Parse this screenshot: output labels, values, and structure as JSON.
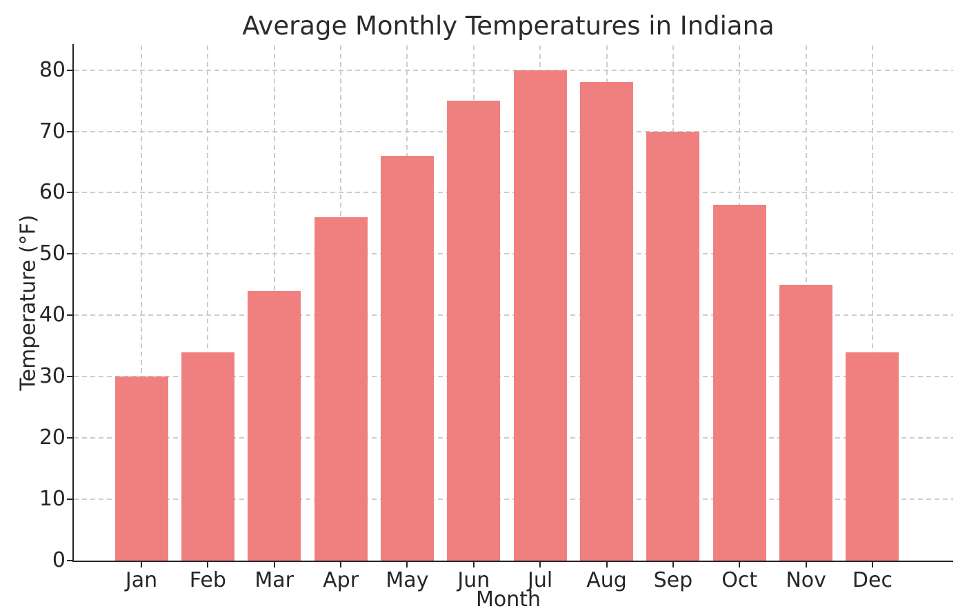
{
  "chart_data": {
    "type": "bar",
    "title": "Average Monthly Temperatures in Indiana",
    "xlabel": "Month",
    "ylabel": "Temperature (°F)",
    "categories": [
      "Jan",
      "Feb",
      "Mar",
      "Apr",
      "May",
      "Jun",
      "Jul",
      "Aug",
      "Sep",
      "Oct",
      "Nov",
      "Dec"
    ],
    "values": [
      30,
      34,
      44,
      56,
      66,
      75,
      80,
      78,
      70,
      58,
      45,
      34
    ],
    "yticks": [
      0,
      10,
      20,
      30,
      40,
      50,
      60,
      70,
      80
    ],
    "ylim": [
      0,
      84
    ],
    "grid": "dashed, both axes",
    "legend": "none",
    "colors": {
      "bar": "#F08080",
      "grid": "#cccccc",
      "axis": "#262626",
      "text": "#2b2b2b",
      "background": "#ffffff"
    }
  }
}
